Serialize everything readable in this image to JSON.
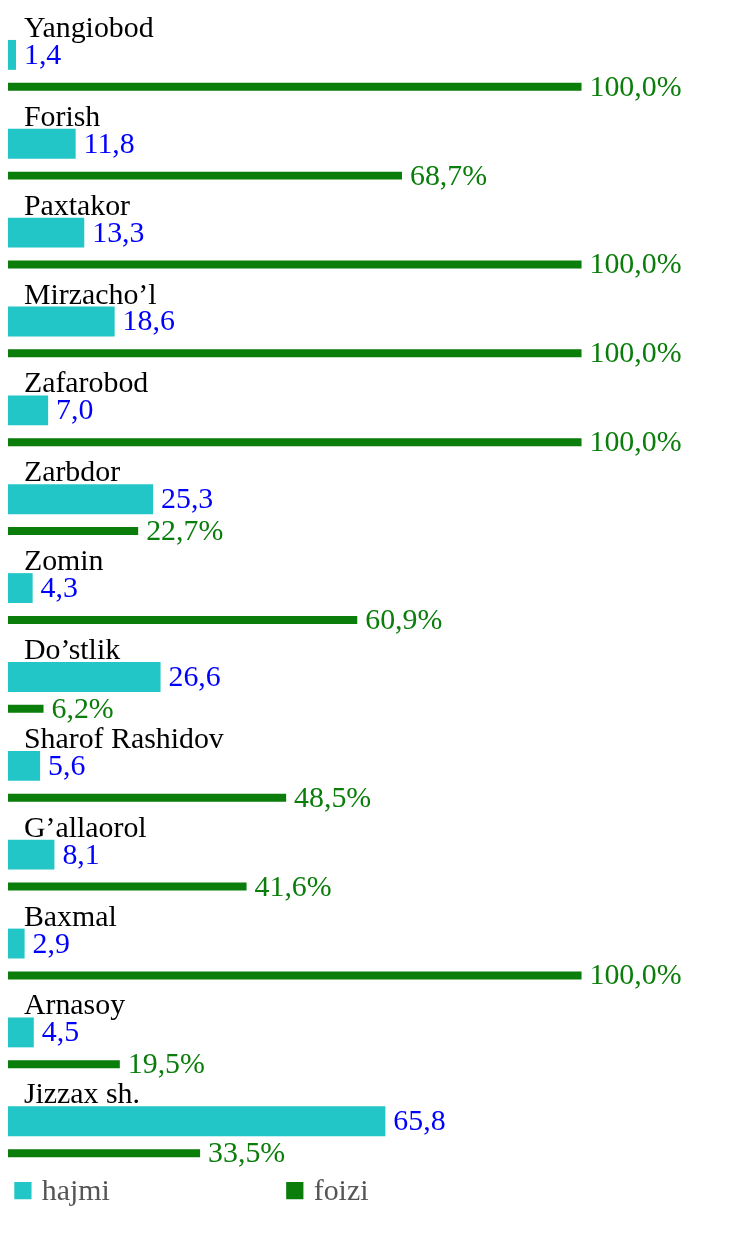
{
  "chart_data": {
    "type": "bar",
    "orientation": "horizontal",
    "categories": [
      "Yangiobod",
      "Forish",
      "Paxtakor",
      "Mirzacho’l",
      "Zafarobod",
      "Zarbdor",
      "Zomin",
      "Do’stlik",
      "Sharof Rashidov",
      "G’allaorol",
      "Baxmal",
      "Arnasoy",
      "Jizzax sh."
    ],
    "series": [
      {
        "name": "hajmi",
        "color": "#22c6c6",
        "values": [
          1.4,
          11.8,
          13.3,
          18.6,
          7.0,
          25.3,
          4.3,
          26.6,
          5.6,
          8.1,
          2.9,
          4.5,
          65.8
        ],
        "value_labels": [
          "1,4",
          "11,8",
          "13,3",
          "18,6",
          "7,0",
          "25,3",
          "4,3",
          "26,6",
          "5,6",
          "8,1",
          "2,9",
          "4,5",
          "65,8"
        ]
      },
      {
        "name": "foizi",
        "color": "#0a7d0a",
        "values": [
          100.0,
          68.7,
          100.0,
          100.0,
          100.0,
          22.7,
          60.9,
          6.2,
          48.5,
          41.6,
          100.0,
          19.5,
          33.5
        ],
        "value_labels": [
          "100,0%",
          "68,7%",
          "100,0%",
          "100,0%",
          "100,0%",
          "22,7%",
          "60,9%",
          "6,2%",
          "48,5%",
          "41,6%",
          "100,0%",
          "19,5%",
          "33,5%"
        ]
      }
    ],
    "legend": "bottom"
  }
}
